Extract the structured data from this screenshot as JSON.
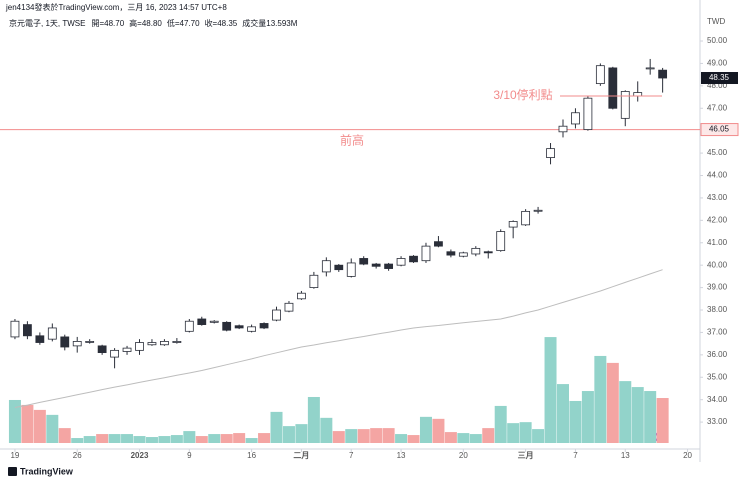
{
  "header": {
    "line1": "jen4134發表於TradingView.com，三月 16, 2023 14:57 UTC+8",
    "symbol": "京元電子, 1天, TWSE",
    "ohlc": [
      "開=48.70",
      "高=48.80",
      "低=47.70",
      "收=48.35",
      "成交量13.593M"
    ]
  },
  "footer": "TradingView",
  "chart_data": {
    "type": "candlestick",
    "currency": "TWD",
    "xlim": [
      -1.2,
      55
    ],
    "xticks": [
      {
        "value": 0,
        "label": "19"
      },
      {
        "value": 5,
        "label": "26"
      },
      {
        "value": 10,
        "label": "2023"
      },
      {
        "value": 14,
        "label": "9"
      },
      {
        "value": 19,
        "label": "16"
      },
      {
        "value": 23,
        "label": "二月"
      },
      {
        "value": 27,
        "label": "7"
      },
      {
        "value": 31,
        "label": "13"
      },
      {
        "value": 36,
        "label": "20"
      },
      {
        "value": 41,
        "label": "三月"
      },
      {
        "value": 45,
        "label": "7"
      },
      {
        "value": 49,
        "label": "13"
      },
      {
        "value": 54,
        "label": "20"
      }
    ],
    "ylim": [
      31.8,
      51.83
    ],
    "yticks": [
      {
        "value": 33,
        "label": "33.00"
      },
      {
        "value": 34,
        "label": "34.00"
      },
      {
        "value": 35,
        "label": "35.00"
      },
      {
        "value": 36,
        "label": "36.00"
      },
      {
        "value": 37,
        "label": "37.00"
      },
      {
        "value": 38,
        "label": "38.00"
      },
      {
        "value": 39,
        "label": "39.00"
      },
      {
        "value": 40,
        "label": "40.00"
      },
      {
        "value": 41,
        "label": "41.00"
      },
      {
        "value": 42,
        "label": "42.00"
      },
      {
        "value": 43,
        "label": "43.00"
      },
      {
        "value": 44,
        "label": "44.00"
      },
      {
        "value": 45,
        "label": "45.00"
      },
      {
        "value": 46,
        "label": "46.00"
      },
      {
        "value": 47,
        "label": "47.00"
      },
      {
        "value": 48,
        "label": "48.00"
      },
      {
        "value": 49,
        "label": "49.00"
      },
      {
        "value": 50,
        "label": "50.00"
      }
    ],
    "candles": {
      "up_color": "#ffffff",
      "down_color": "#2a2e39",
      "edge_color": "#2a2e39",
      "open": [
        36.8,
        37.35,
        36.85,
        36.7,
        36.8,
        36.4,
        36.6,
        36.4,
        35.9,
        36.15,
        36.2,
        36.45,
        36.45,
        36.55,
        37.05,
        37.6,
        37.45,
        37.45,
        37.3,
        37.05,
        37.4,
        37.55,
        37.95,
        38.5,
        39.0,
        39.7,
        40.0,
        39.5,
        40.3,
        40.05,
        40.05,
        40.0,
        40.4,
        40.2,
        41.05,
        40.6,
        40.4,
        40.5,
        40.6,
        40.65,
        41.7,
        41.8,
        42.45,
        44.8,
        45.95,
        46.3,
        46.05,
        48.1,
        48.8,
        46.55,
        47.55,
        48.8,
        48.7
      ],
      "high": [
        37.6,
        37.5,
        37.0,
        37.4,
        36.9,
        36.8,
        36.7,
        36.45,
        36.3,
        36.4,
        36.7,
        36.7,
        36.7,
        36.75,
        37.6,
        37.7,
        37.55,
        37.5,
        37.35,
        37.35,
        37.45,
        38.15,
        38.4,
        38.85,
        39.7,
        40.35,
        40.05,
        40.3,
        40.4,
        40.1,
        40.1,
        40.4,
        40.45,
        41.0,
        41.3,
        40.7,
        40.6,
        40.85,
        40.65,
        41.6,
        42.0,
        42.5,
        42.6,
        45.45,
        46.5,
        47.0,
        47.55,
        49.0,
        48.85,
        47.8,
        48.2,
        49.2,
        48.8
      ],
      "low": [
        36.7,
        36.7,
        36.45,
        36.6,
        36.2,
        36.1,
        36.5,
        36.0,
        35.4,
        36.0,
        36.0,
        36.4,
        36.4,
        36.5,
        37.0,
        37.3,
        37.4,
        37.05,
        37.15,
        37.0,
        37.15,
        37.5,
        37.9,
        38.45,
        38.95,
        39.5,
        39.7,
        39.45,
        40.0,
        39.85,
        39.75,
        39.95,
        40.1,
        40.1,
        40.8,
        40.35,
        40.35,
        40.4,
        40.3,
        40.6,
        41.2,
        41.75,
        42.3,
        44.5,
        45.7,
        46.1,
        46.0,
        48.0,
        46.95,
        46.2,
        47.3,
        48.5,
        47.7
      ],
      "close": [
        37.5,
        36.85,
        36.55,
        37.2,
        36.35,
        36.6,
        36.6,
        36.1,
        36.2,
        36.3,
        36.55,
        36.55,
        36.6,
        36.6,
        37.5,
        37.35,
        37.5,
        37.1,
        37.2,
        37.25,
        37.2,
        38.0,
        38.3,
        38.75,
        39.55,
        40.2,
        39.8,
        40.1,
        40.05,
        39.95,
        39.85,
        40.3,
        40.15,
        40.85,
        40.85,
        40.45,
        40.55,
        40.75,
        40.55,
        41.5,
        41.95,
        42.4,
        42.45,
        45.2,
        46.2,
        46.8,
        47.45,
        48.9,
        47.0,
        47.75,
        47.7,
        48.8,
        48.35
      ]
    },
    "volume": {
      "up_color": "#92d3ca",
      "down_color": "#f4a5a3",
      "values": [
        13.0,
        11.5,
        10.0,
        8.5,
        4.5,
        1.5,
        2.1,
        2.7,
        2.7,
        2.7,
        2.1,
        1.8,
        2.1,
        2.4,
        3.6,
        2.1,
        2.7,
        2.7,
        3.0,
        1.5,
        3.0,
        9.4,
        5.1,
        5.7,
        13.9,
        7.6,
        3.6,
        4.2,
        4.2,
        4.5,
        4.5,
        2.7,
        2.4,
        7.9,
        7.3,
        3.3,
        3.0,
        2.7,
        4.5,
        11.2,
        6.0,
        6.3,
        4.2,
        32.0,
        17.8,
        12.7,
        15.7,
        26.3,
        24.2,
        18.7,
        16.9,
        15.7,
        13.593
      ]
    },
    "ma": {
      "color": "#bdbdbd",
      "values": [
        33.65,
        33.76,
        33.88,
        33.99,
        34.1,
        34.22,
        34.33,
        34.45,
        34.56,
        34.66,
        34.77,
        34.88,
        34.98,
        35.09,
        35.19,
        35.3,
        35.43,
        35.56,
        35.69,
        35.82,
        35.96,
        36.09,
        36.22,
        36.35,
        36.44,
        36.54,
        36.63,
        36.73,
        36.82,
        36.92,
        37.01,
        37.11,
        37.2,
        37.26,
        37.31,
        37.37,
        37.43,
        37.49,
        37.54,
        37.6,
        37.73,
        37.87,
        38.0,
        38.17,
        38.34,
        38.51,
        38.68,
        38.85,
        39.04,
        39.23,
        39.42,
        39.61,
        39.8
      ]
    },
    "hlines": [
      {
        "value": 46.05,
        "label": "46.05",
        "color": "#f28b8b"
      }
    ],
    "last_price": {
      "value": 48.35,
      "label": "48.35"
    },
    "annotations": [
      {
        "text": "3/10停利點",
        "value": 47.55,
        "color": "#f28b8b"
      },
      {
        "text": "前高",
        "color": "#f28b8b"
      }
    ]
  }
}
